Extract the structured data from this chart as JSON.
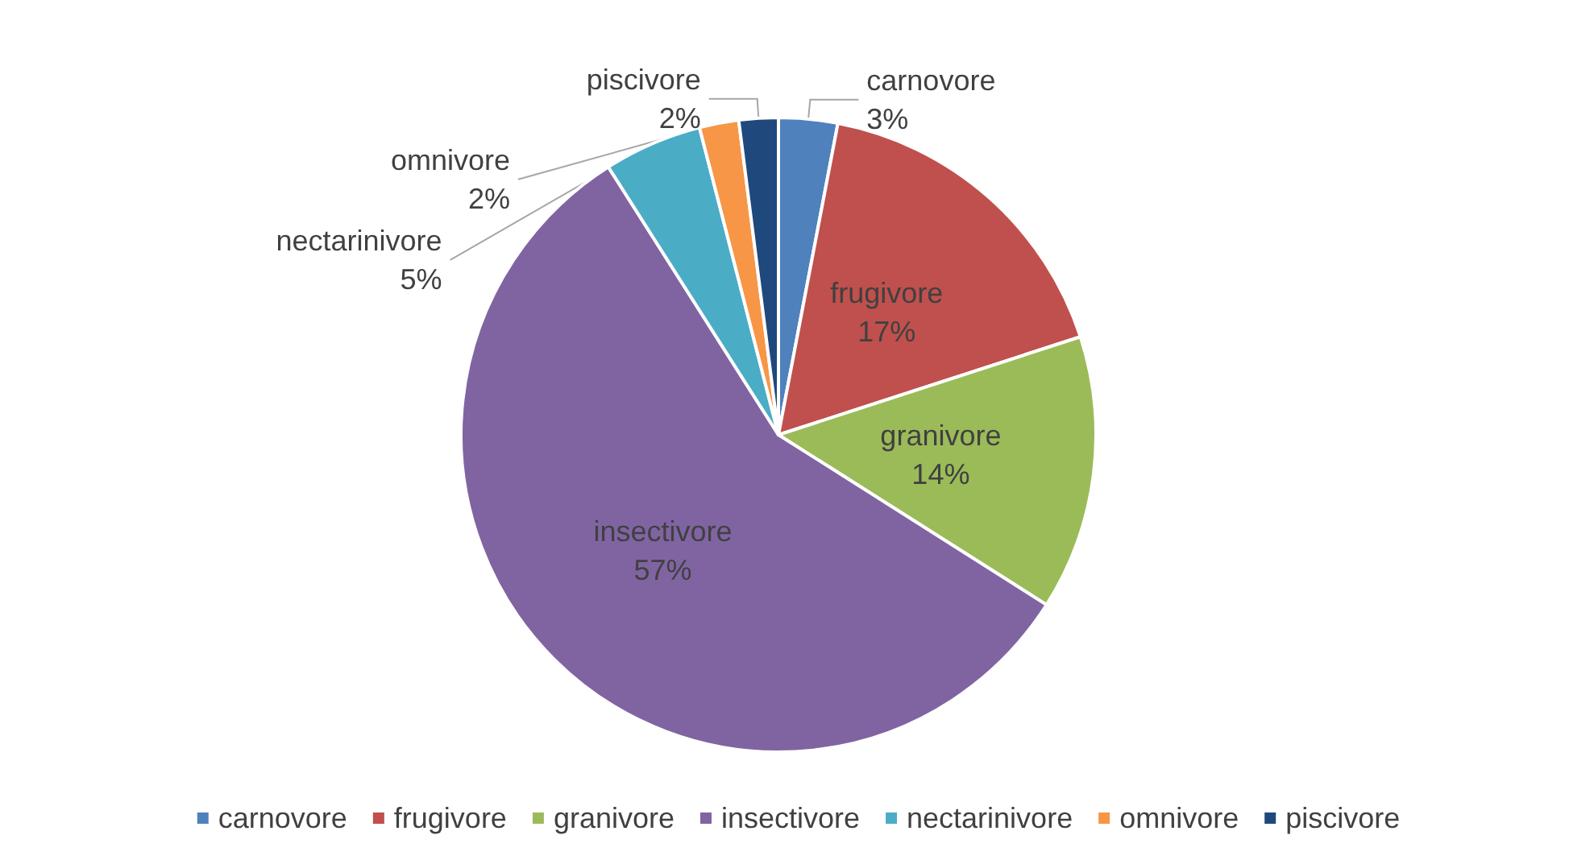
{
  "chart_data": {
    "type": "pie",
    "categories": [
      "carnovore",
      "frugivore",
      "granivore",
      "insectivore",
      "nectarinivore",
      "omnivore",
      "piscivore"
    ],
    "values": [
      3,
      17,
      14,
      57,
      5,
      2,
      2
    ],
    "colors": [
      "#4f81bd",
      "#c0504d",
      "#9bbb59",
      "#8064a2",
      "#4bacc6",
      "#f79646",
      "#1f497d"
    ],
    "value_labels": [
      "3%",
      "17%",
      "14%",
      "57%",
      "5%",
      "2%",
      "2%"
    ],
    "legend": "bottom"
  }
}
